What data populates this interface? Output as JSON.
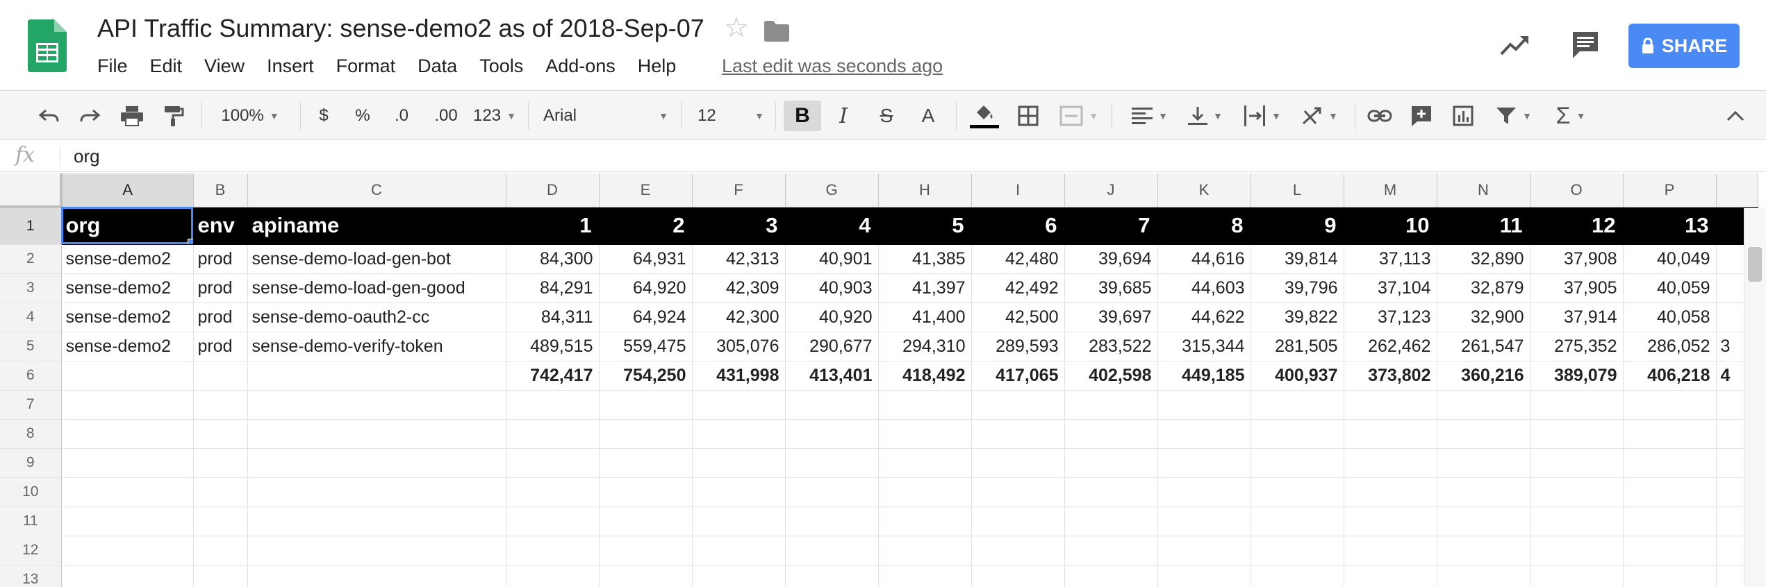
{
  "doc": {
    "title": "API Traffic Summary: sense-demo2 as of 2018-Sep-07",
    "last_edit": "Last edit was seconds ago",
    "share_label": "SHARE"
  },
  "menu": [
    "File",
    "Edit",
    "View",
    "Insert",
    "Format",
    "Data",
    "Tools",
    "Add-ons",
    "Help"
  ],
  "toolbar": {
    "zoom": "100%",
    "currency": "$",
    "percent": "%",
    "dec_decrease": ".0",
    "dec_increase": ".00",
    "more_formats": "123",
    "font": "Arial",
    "font_size": "12",
    "bold": "B",
    "italic": "I",
    "strike": "S",
    "text_color": "A"
  },
  "formula_bar": {
    "fx": "fx",
    "value": "org"
  },
  "columns": [
    "A",
    "B",
    "C",
    "D",
    "E",
    "F",
    "G",
    "H",
    "I",
    "J",
    "K",
    "L",
    "M",
    "N",
    "O",
    "P"
  ],
  "row_numbers": [
    "1",
    "2",
    "3",
    "4",
    "5",
    "6",
    "7",
    "8",
    "9",
    "10",
    "11",
    "12",
    "13"
  ],
  "header_row": [
    "org",
    "env",
    "apiname",
    "1",
    "2",
    "3",
    "4",
    "5",
    "6",
    "7",
    "8",
    "9",
    "10",
    "11",
    "12",
    "13"
  ],
  "rows": [
    [
      "sense-demo2",
      "prod",
      "sense-demo-load-gen-bot",
      "84,300",
      "64,931",
      "42,313",
      "40,901",
      "41,385",
      "42,480",
      "39,694",
      "44,616",
      "39,814",
      "37,113",
      "32,890",
      "37,908",
      "40,049"
    ],
    [
      "sense-demo2",
      "prod",
      "sense-demo-load-gen-good",
      "84,291",
      "64,920",
      "42,309",
      "40,903",
      "41,397",
      "42,492",
      "39,685",
      "44,603",
      "39,796",
      "37,104",
      "32,879",
      "37,905",
      "40,059"
    ],
    [
      "sense-demo2",
      "prod",
      "sense-demo-oauth2-cc",
      "84,311",
      "64,924",
      "42,300",
      "40,920",
      "41,400",
      "42,500",
      "39,697",
      "44,622",
      "39,822",
      "37,123",
      "32,900",
      "37,914",
      "40,058"
    ],
    [
      "sense-demo2",
      "prod",
      "sense-demo-verify-token",
      "489,515",
      "559,475",
      "305,076",
      "290,677",
      "294,310",
      "289,593",
      "283,522",
      "315,344",
      "281,505",
      "262,462",
      "261,547",
      "275,352",
      "286,052"
    ]
  ],
  "totals": [
    "",
    "",
    "",
    "742,417",
    "754,250",
    "431,998",
    "413,401",
    "418,492",
    "417,065",
    "402,598",
    "449,185",
    "400,937",
    "373,802",
    "360,216",
    "389,079",
    "406,218"
  ],
  "overflow_column": {
    "row5": "3",
    "row6": "4"
  },
  "colors": {
    "accent": "#4a8af4",
    "header_fill": "#000000",
    "sheets_green": "#23a566"
  }
}
